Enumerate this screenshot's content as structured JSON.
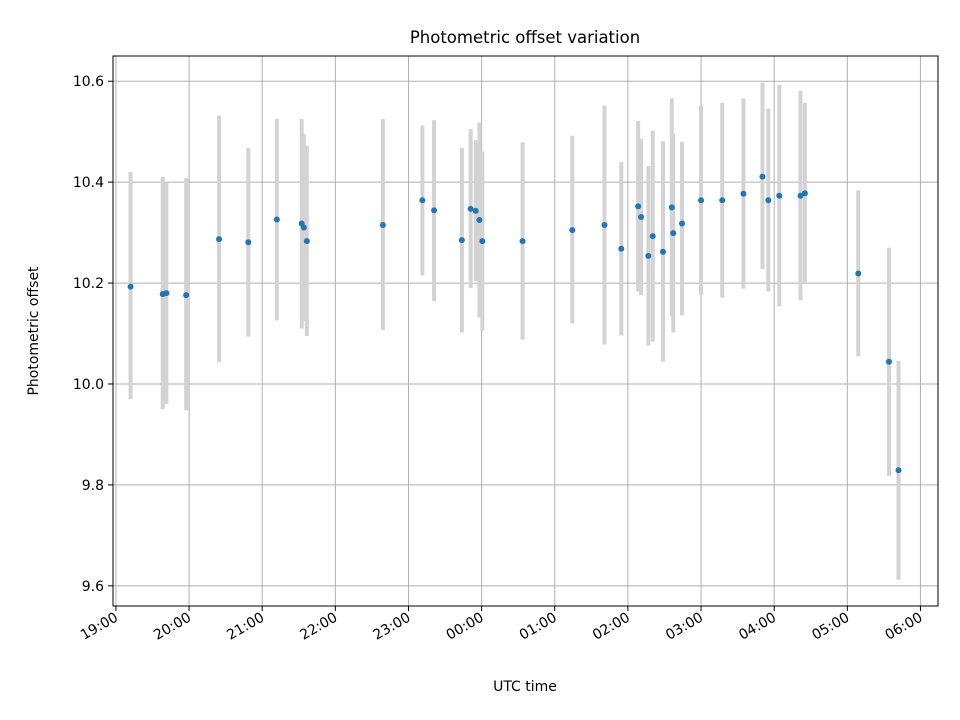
{
  "chart_data": {
    "type": "scatter",
    "title": "Photometric offset variation",
    "xlabel": "UTC time",
    "ylabel": "Photometric offset",
    "x_tick_labels": [
      "19:00",
      "20:00",
      "21:00",
      "22:00",
      "23:00",
      "00:00",
      "01:00",
      "02:00",
      "03:00",
      "04:00",
      "05:00",
      "06:00"
    ],
    "y_ticks": [
      9.6,
      9.8,
      10.0,
      10.2,
      10.4,
      10.6
    ],
    "y_tick_labels": [
      "9.6",
      "9.8",
      "10.0",
      "10.2",
      "10.4",
      "10.6"
    ],
    "xlim_hours": [
      18.96,
      30.24
    ],
    "ylim": [
      9.56,
      10.65
    ],
    "grid": true,
    "colors": {
      "marker": "#1f77b4",
      "errorbar": "#d3d3d3",
      "grid": "#b0b0b0"
    },
    "points": [
      {
        "x": 19.2,
        "y": 10.193,
        "ylo": 9.97,
        "yhi": 10.42
      },
      {
        "x": 19.64,
        "y": 10.178,
        "ylo": 9.95,
        "yhi": 10.41
      },
      {
        "x": 19.69,
        "y": 10.18,
        "ylo": 9.96,
        "yhi": 10.4
      },
      {
        "x": 19.96,
        "y": 10.176,
        "ylo": 9.948,
        "yhi": 10.408
      },
      {
        "x": 20.41,
        "y": 10.287,
        "ylo": 10.043,
        "yhi": 10.532
      },
      {
        "x": 20.81,
        "y": 10.281,
        "ylo": 10.094,
        "yhi": 10.468
      },
      {
        "x": 21.2,
        "y": 10.326,
        "ylo": 10.126,
        "yhi": 10.525
      },
      {
        "x": 21.54,
        "y": 10.318,
        "ylo": 10.11,
        "yhi": 10.525
      },
      {
        "x": 21.57,
        "y": 10.31,
        "ylo": 10.125,
        "yhi": 10.495
      },
      {
        "x": 21.61,
        "y": 10.283,
        "ylo": 10.095,
        "yhi": 10.472
      },
      {
        "x": 22.65,
        "y": 10.315,
        "ylo": 10.107,
        "yhi": 10.525
      },
      {
        "x": 23.19,
        "y": 10.364,
        "ylo": 10.215,
        "yhi": 10.512
      },
      {
        "x": 23.35,
        "y": 10.344,
        "ylo": 10.164,
        "yhi": 10.523
      },
      {
        "x": 23.73,
        "y": 10.285,
        "ylo": 10.102,
        "yhi": 10.468
      },
      {
        "x": 23.85,
        "y": 10.347,
        "ylo": 10.19,
        "yhi": 10.505
      },
      {
        "x": 23.92,
        "y": 10.343,
        "ylo": 10.204,
        "yhi": 10.483
      },
      {
        "x": 23.97,
        "y": 10.325,
        "ylo": 10.132,
        "yhi": 10.518
      },
      {
        "x": 24.01,
        "y": 10.283,
        "ylo": 10.105,
        "yhi": 10.461
      },
      {
        "x": 24.56,
        "y": 10.283,
        "ylo": 10.088,
        "yhi": 10.479
      },
      {
        "x": 25.24,
        "y": 10.305,
        "ylo": 10.12,
        "yhi": 10.492
      },
      {
        "x": 25.68,
        "y": 10.315,
        "ylo": 10.078,
        "yhi": 10.552
      },
      {
        "x": 25.91,
        "y": 10.268,
        "ylo": 10.096,
        "yhi": 10.44
      },
      {
        "x": 26.14,
        "y": 10.352,
        "ylo": 10.183,
        "yhi": 10.521
      },
      {
        "x": 26.18,
        "y": 10.331,
        "ylo": 10.176,
        "yhi": 10.486
      },
      {
        "x": 26.28,
        "y": 10.254,
        "ylo": 10.076,
        "yhi": 10.432
      },
      {
        "x": 26.34,
        "y": 10.293,
        "ylo": 10.084,
        "yhi": 10.502
      },
      {
        "x": 26.48,
        "y": 10.262,
        "ylo": 10.044,
        "yhi": 10.481
      },
      {
        "x": 26.6,
        "y": 10.35,
        "ylo": 10.134,
        "yhi": 10.566
      },
      {
        "x": 26.62,
        "y": 10.299,
        "ylo": 10.102,
        "yhi": 10.496
      },
      {
        "x": 26.74,
        "y": 10.318,
        "ylo": 10.136,
        "yhi": 10.48
      },
      {
        "x": 27.0,
        "y": 10.364,
        "ylo": 10.176,
        "yhi": 10.552
      },
      {
        "x": 27.29,
        "y": 10.364,
        "ylo": 10.171,
        "yhi": 10.557
      },
      {
        "x": 27.58,
        "y": 10.377,
        "ylo": 10.189,
        "yhi": 10.566
      },
      {
        "x": 27.84,
        "y": 10.411,
        "ylo": 10.228,
        "yhi": 10.597
      },
      {
        "x": 27.92,
        "y": 10.364,
        "ylo": 10.183,
        "yhi": 10.546
      },
      {
        "x": 28.07,
        "y": 10.373,
        "ylo": 10.154,
        "yhi": 10.593
      },
      {
        "x": 28.36,
        "y": 10.373,
        "ylo": 10.166,
        "yhi": 10.581
      },
      {
        "x": 28.42,
        "y": 10.378,
        "ylo": 10.2,
        "yhi": 10.557
      },
      {
        "x": 29.15,
        "y": 10.219,
        "ylo": 10.055,
        "yhi": 10.384
      },
      {
        "x": 29.57,
        "y": 10.044,
        "ylo": 9.818,
        "yhi": 10.27
      },
      {
        "x": 29.7,
        "y": 9.829,
        "ylo": 9.612,
        "yhi": 10.046
      }
    ]
  }
}
